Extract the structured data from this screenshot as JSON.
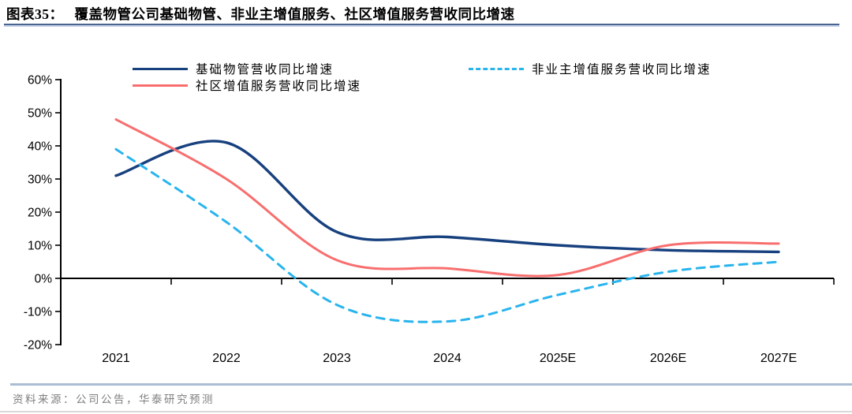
{
  "header": {
    "label": "图表35：",
    "title": "覆盖物管公司基础物管、非业主增值服务、社区增值服务营收同比增速"
  },
  "legend": {
    "items": [
      {
        "label": "基础物管营收同比增速",
        "series": 0
      },
      {
        "label": "非业主增值服务营收同比增速",
        "series": 2
      },
      {
        "label": "社区增值服务营收同比增速",
        "series": 1
      }
    ]
  },
  "chart_data": {
    "type": "line",
    "title": "覆盖物管公司基础物管、非业主增值服务、社区增值服务营收同比增速",
    "categories": [
      "2021",
      "2022",
      "2023",
      "2024",
      "2025E",
      "2026E",
      "2027E"
    ],
    "series": [
      {
        "name": "基础物管营收同比增速",
        "color": "#17407E",
        "style": "solid",
        "values": [
          31,
          41,
          14,
          12.5,
          10,
          8.5,
          8
        ]
      },
      {
        "name": "社区增值服务营收同比增速",
        "color": "#F86E6E",
        "style": "solid",
        "values": [
          48,
          30,
          5.5,
          3,
          1,
          10,
          10.5
        ]
      },
      {
        "name": "非业主增值服务营收同比增速",
        "color": "#29B4EE",
        "style": "dashed",
        "values": [
          39,
          17,
          -8,
          -13,
          -5,
          2,
          5
        ]
      }
    ],
    "xlabel": "",
    "ylabel": "",
    "ylim": [
      -20,
      60
    ],
    "ytick_step": 10,
    "y_tick_labels": [
      "60%",
      "50%",
      "40%",
      "30%",
      "20%",
      "10%",
      "0%",
      "-10%",
      "-20%"
    ],
    "legend_position": "top",
    "grid": false
  },
  "footer": {
    "source": "资料来源：公司公告，华泰研究预测"
  },
  "colors": {
    "title_rule_dark": "#4A648F",
    "title_rule_light": "#C7D4E9",
    "footer_rule": "#A9BDD3",
    "bottom_rule": "#D9D9D9",
    "axis": "#000000",
    "tick_text": "#000000",
    "footer_text": "#7F7F7F"
  }
}
